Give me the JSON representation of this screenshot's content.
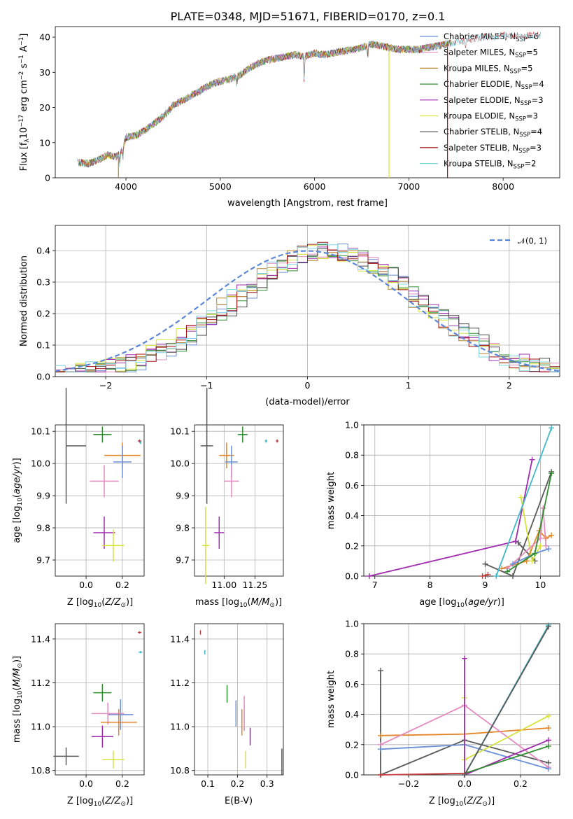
{
  "title": "PLATE=0348, MJD=51671, FIBERID=0170, z=0.1",
  "colors": {
    "series": [
      "#6b8fd6",
      "#e5862b",
      "#2f8f2f",
      "#a12cb0",
      "#5a5a5a",
      "#e48bbf",
      "#c83e3e",
      "#d6e33a",
      "#8a5a2a",
      "#42b8c8"
    ],
    "c_miles": "#6b8fd6",
    "s_miles": "#e48bbf",
    "k_miles": "#b8862b",
    "c_elodie": "#2f8f2f",
    "s_elodie": "#a12cb0",
    "k_elodie": "#d6e33a",
    "c_stelib": "#4a4a4a",
    "s_stelib": "#a01010",
    "k_stelib": "#7fd6e6",
    "normal": "#5b87d6"
  },
  "chart_data": [
    {
      "id": "spectrum",
      "type": "line",
      "xlabel": "wavelength [Angstrom, rest frame]",
      "ylabel": "Flux [fλ10⁻¹⁷ erg cm⁻² s⁻¹ A⁻¹]",
      "xlim": [
        3250,
        8600
      ],
      "ylim": [
        0,
        43
      ],
      "xticks": [
        4000,
        5000,
        6000,
        7000,
        8000
      ],
      "yticks": [
        0,
        10,
        20,
        30,
        40
      ],
      "grid": false,
      "legend_position": "right",
      "legend": [
        "Chabrier MILES, NSSP=6",
        "Salpeter MILES, NSSP=5",
        "Kroupa MILES, NSSP=5",
        "Chabrier ELODIE, NSSP=4",
        "Salpeter ELODIE, NSSP=3",
        "Kroupa ELODIE, NSSP=3",
        "Chabrier STELIB, NSSP=4",
        "Salpeter STELIB, NSSP=3",
        "Kroupa STELIB, NSSP=2"
      ],
      "continuum": [
        [
          3480,
          4.5
        ],
        [
          3600,
          4.0
        ],
        [
          3700,
          5.0
        ],
        [
          3800,
          6.5
        ],
        [
          3900,
          6.0
        ],
        [
          3950,
          7.5
        ],
        [
          4000,
          11.5
        ],
        [
          4100,
          12.0
        ],
        [
          4200,
          13.5
        ],
        [
          4300,
          15.5
        ],
        [
          4400,
          17.5
        ],
        [
          4500,
          20.5
        ],
        [
          4600,
          22.0
        ],
        [
          4700,
          23.5
        ],
        [
          4800,
          25.0
        ],
        [
          4900,
          26.5
        ],
        [
          5000,
          27.5
        ],
        [
          5100,
          28.0
        ],
        [
          5200,
          29.0
        ],
        [
          5300,
          31.0
        ],
        [
          5400,
          32.5
        ],
        [
          5500,
          33.5
        ],
        [
          5600,
          34.0
        ],
        [
          5700,
          34.5
        ],
        [
          5800,
          35.0
        ],
        [
          5900,
          34.5
        ],
        [
          6000,
          35.5
        ],
        [
          6100,
          35.0
        ],
        [
          6200,
          35.5
        ],
        [
          6300,
          36.0
        ],
        [
          6400,
          36.5
        ],
        [
          6500,
          37.0
        ],
        [
          6600,
          38.0
        ],
        [
          6700,
          37.5
        ],
        [
          6800,
          37.0
        ],
        [
          6900,
          36.5
        ],
        [
          7000,
          36.5
        ],
        [
          7100,
          36.5
        ],
        [
          7200,
          37.0
        ],
        [
          7300,
          37.5
        ],
        [
          7400,
          38.0
        ],
        [
          7500,
          38.5
        ],
        [
          7600,
          39.0
        ],
        [
          7700,
          39.5
        ],
        [
          7800,
          40.0
        ],
        [
          7900,
          40.0
        ],
        [
          8000,
          40.5
        ],
        [
          8100,
          40.5
        ],
        [
          8200,
          40.0
        ],
        [
          8300,
          40.5
        ],
        [
          8400,
          40.5
        ]
      ],
      "dips": [
        [
          3933,
          3.0
        ],
        [
          3968,
          3.5
        ],
        [
          5175,
          2.5
        ],
        [
          5890,
          7.0
        ],
        [
          6563,
          3.0
        ],
        [
          7600,
          2.0
        ]
      ],
      "drops": [
        {
          "x": 3920,
          "model": 2
        },
        {
          "x": 6790,
          "model": 5
        },
        {
          "x": 7410,
          "model": 7
        }
      ]
    },
    {
      "id": "residuals",
      "type": "step",
      "xlabel": "(data-model)/error",
      "ylabel": "Normed distribution",
      "xlim": [
        -2.5,
        2.5
      ],
      "ylim": [
        0,
        0.48
      ],
      "xticks": [
        -2,
        -1,
        0,
        1,
        2
      ],
      "yticks": [
        0.0,
        0.1,
        0.2,
        0.3,
        0.4
      ],
      "grid": true,
      "legend_position": "upper right",
      "legend": [
        "𝒩(0, 1)"
      ]
    },
    {
      "id": "age_vs_Z",
      "type": "scatter",
      "xlabel": "Z [log10(Z/Z⊙)]",
      "ylabel": "age  [log10(age/yr)]",
      "xlim": [
        -0.17,
        0.32
      ],
      "ylim": [
        9.65,
        10.12
      ],
      "xticks": [
        0.0,
        0.2
      ],
      "yticks": [
        9.7,
        9.8,
        9.9,
        10.0,
        10.1
      ],
      "grid": true,
      "points": [
        {
          "c": 4,
          "x": -0.11,
          "y": 10.055,
          "xe": 0.11,
          "ye": 0.18,
          "xh": true
        },
        {
          "c": 2,
          "x": 0.09,
          "y": 10.09,
          "xe": 0.05,
          "ye": 0.025
        },
        {
          "c": 1,
          "x": 0.2,
          "y": 10.025,
          "xe": 0.1,
          "ye": 0.04
        },
        {
          "c": 0,
          "x": 0.2,
          "y": 10.005,
          "xe": 0.05,
          "ye": 0.05
        },
        {
          "c": 5,
          "x": 0.1,
          "y": 9.945,
          "xe": 0.08,
          "ye": 0.05
        },
        {
          "c": 3,
          "x": 0.1,
          "y": 9.785,
          "xe": 0.06,
          "ye": 0.05
        },
        {
          "c": 7,
          "x": 0.15,
          "y": 9.745,
          "xe": 0.06,
          "ye": 0.05
        },
        {
          "c": 6,
          "x": 0.295,
          "y": 10.07,
          "xe": 0.01,
          "ye": 0.005
        },
        {
          "c": 9,
          "x": 0.3,
          "y": 10.065,
          "xe": 0.005,
          "ye": 0.004
        }
      ]
    },
    {
      "id": "age_vs_mass",
      "type": "scatter",
      "xlabel": "mass [log10(M/M⊙)]",
      "ylabel": "",
      "xlim": [
        10.76,
        11.48
      ],
      "ylim": [
        9.65,
        10.12
      ],
      "xticks": [
        11.0,
        11.25
      ],
      "yticks": [
        9.7,
        9.8,
        9.9,
        10.0,
        10.1
      ],
      "grid": true,
      "points": [
        {
          "c": 4,
          "x": 10.86,
          "y": 10.055,
          "xe": 0.05,
          "ye": 0.18
        },
        {
          "c": 2,
          "x": 11.15,
          "y": 10.09,
          "xe": 0.04,
          "ye": 0.025
        },
        {
          "c": 1,
          "x": 11.02,
          "y": 10.025,
          "xe": 0.06,
          "ye": 0.04
        },
        {
          "c": 0,
          "x": 11.06,
          "y": 10.005,
          "xe": 0.05,
          "ye": 0.05
        },
        {
          "c": 5,
          "x": 11.06,
          "y": 9.945,
          "xe": 0.06,
          "ye": 0.05
        },
        {
          "c": 3,
          "x": 10.96,
          "y": 9.785,
          "xe": 0.04,
          "ye": 0.05
        },
        {
          "c": 7,
          "x": 10.85,
          "y": 9.745,
          "xe": 0.03,
          "ye": 0.12
        },
        {
          "c": 6,
          "x": 11.43,
          "y": 10.07,
          "xe": 0.01,
          "ye": 0.005
        },
        {
          "c": 9,
          "x": 11.34,
          "y": 10.07,
          "xe": 0.01,
          "ye": 0.005
        }
      ]
    },
    {
      "id": "massweight_vs_age",
      "type": "line",
      "xlabel": "age  [log10(age/yr)]",
      "ylabel": "mass weight",
      "xlim": [
        6.8,
        10.35
      ],
      "ylim": [
        0,
        1
      ],
      "xticks": [
        7,
        8,
        9,
        10
      ],
      "yticks": [
        0.0,
        0.2,
        0.4,
        0.6,
        0.8,
        1.0
      ],
      "grid": true,
      "series": [
        {
          "c": 3,
          "pts": [
            [
              6.9,
              0.0
            ],
            [
              9.55,
              0.23
            ],
            [
              9.85,
              0.77
            ]
          ]
        },
        {
          "c": 4,
          "pts": [
            [
              9.0,
              0.08
            ],
            [
              9.5,
              0.0
            ],
            [
              10.2,
              0.69
            ]
          ]
        },
        {
          "c": 4,
          "pts": [
            [
              9.6,
              0.22
            ],
            [
              9.9,
              0.1
            ]
          ]
        },
        {
          "c": 7,
          "pts": [
            [
              9.65,
              0.52
            ],
            [
              9.85,
              0.1
            ],
            [
              10.0,
              0.2
            ]
          ]
        },
        {
          "c": 1,
          "pts": [
            [
              9.3,
              0.05
            ],
            [
              9.75,
              0.1
            ],
            [
              9.98,
              0.3
            ],
            [
              10.1,
              0.25
            ],
            [
              10.2,
              0.27
            ]
          ]
        },
        {
          "c": 5,
          "pts": [
            [
              9.4,
              0.05
            ],
            [
              10.0,
              0.25
            ],
            [
              10.05,
              0.45
            ],
            [
              10.1,
              0.2
            ]
          ]
        },
        {
          "c": 0,
          "pts": [
            [
              9.5,
              0.08
            ],
            [
              9.9,
              0.15
            ],
            [
              10.15,
              0.18
            ]
          ]
        },
        {
          "c": 2,
          "pts": [
            [
              9.4,
              0.03
            ],
            [
              9.9,
              0.15
            ],
            [
              10.2,
              0.68
            ]
          ]
        },
        {
          "c": 6,
          "pts": [
            [
              8.95,
              0.0
            ],
            [
              9.05,
              0.01
            ]
          ]
        },
        {
          "c": 9,
          "pts": [
            [
              9.2,
              0.0
            ],
            [
              10.2,
              0.98
            ]
          ]
        }
      ]
    },
    {
      "id": "mass_vs_Z",
      "type": "scatter",
      "xlabel": "Z [log10(Z/Z⊙)]",
      "ylabel": "mass [log10(M/M⊙)]",
      "xlim": [
        -0.17,
        0.32
      ],
      "ylim": [
        10.78,
        11.47
      ],
      "xticks": [
        0.0,
        0.2
      ],
      "yticks": [
        10.8,
        11.0,
        11.2,
        11.4
      ],
      "grid": true,
      "points": [
        {
          "c": 4,
          "x": -0.11,
          "y": 10.865,
          "xe": 0.07,
          "ye": 0.04
        },
        {
          "c": 2,
          "x": 0.09,
          "y": 11.155,
          "xe": 0.05,
          "ye": 0.04
        },
        {
          "c": 0,
          "x": 0.19,
          "y": 11.055,
          "xe": 0.07,
          "ye": 0.07
        },
        {
          "c": 5,
          "x": 0.12,
          "y": 11.06,
          "xe": 0.09,
          "ye": 0.05
        },
        {
          "c": 1,
          "x": 0.18,
          "y": 11.02,
          "xe": 0.1,
          "ye": 0.06
        },
        {
          "c": 3,
          "x": 0.09,
          "y": 10.955,
          "xe": 0.06,
          "ye": 0.05
        },
        {
          "c": 7,
          "x": 0.15,
          "y": 10.85,
          "xe": 0.06,
          "ye": 0.04
        },
        {
          "c": 6,
          "x": 0.295,
          "y": 11.43,
          "xe": 0.01,
          "ye": 0.005
        },
        {
          "c": 9,
          "x": 0.3,
          "y": 11.34,
          "xe": 0.01,
          "ye": 0.005
        }
      ]
    },
    {
      "id": "mass_vs_ebv",
      "type": "scatter",
      "xlabel": "E(B-V)",
      "ylabel": "",
      "xlim": [
        0.055,
        0.355
      ],
      "ylim": [
        10.78,
        11.47
      ],
      "xticks": [
        0.1,
        0.2,
        0.3
      ],
      "yticks": [
        10.8,
        11.0,
        11.2,
        11.4
      ],
      "grid": true,
      "points": [
        {
          "c": 4,
          "x": 0.35,
          "y": 10.84,
          "xe": 0.001,
          "ye": 0.06
        },
        {
          "c": 2,
          "x": 0.165,
          "y": 11.15,
          "xe": 0.001,
          "ye": 0.04
        },
        {
          "c": 0,
          "x": 0.195,
          "y": 11.06,
          "xe": 0.001,
          "ye": 0.06
        },
        {
          "c": 5,
          "x": 0.223,
          "y": 11.06,
          "xe": 0.001,
          "ye": 0.08
        },
        {
          "c": 1,
          "x": 0.215,
          "y": 11.02,
          "xe": 0.001,
          "ye": 0.06
        },
        {
          "c": 3,
          "x": 0.243,
          "y": 10.955,
          "xe": 0.001,
          "ye": 0.04
        },
        {
          "c": 7,
          "x": 0.228,
          "y": 10.85,
          "xe": 0.001,
          "ye": 0.04
        },
        {
          "c": 6,
          "x": 0.075,
          "y": 11.43,
          "xe": 0.001,
          "ye": 0.01
        },
        {
          "c": 9,
          "x": 0.09,
          "y": 11.34,
          "xe": 0.001,
          "ye": 0.01
        }
      ]
    },
    {
      "id": "massweight_vs_Z",
      "type": "line",
      "xlabel": "Z [log10(Z/Z⊙)]",
      "ylabel": "mass weight",
      "xlim": [
        -0.36,
        0.34
      ],
      "ylim": [
        0,
        1
      ],
      "xticks": [
        -0.2,
        0.0,
        0.2
      ],
      "yticks": [
        0.0,
        0.2,
        0.4,
        0.6,
        0.8,
        1.0
      ],
      "grid": true,
      "series": [
        {
          "c": 4,
          "pts": [
            [
              -0.3,
              0.0
            ],
            [
              0.0,
              0.23
            ],
            [
              0.3,
              0.08
            ]
          ]
        },
        {
          "c": 4,
          "pts": [
            [
              -0.3,
              0.69
            ],
            [
              -0.3,
              0.0
            ]
          ]
        },
        {
          "c": 1,
          "pts": [
            [
              -0.3,
              0.26
            ],
            [
              0.0,
              0.27
            ],
            [
              0.3,
              0.31
            ]
          ]
        },
        {
          "c": 5,
          "pts": [
            [
              -0.3,
              0.2
            ],
            [
              0.0,
              0.46
            ],
            [
              0.3,
              0.05
            ]
          ]
        },
        {
          "c": 0,
          "pts": [
            [
              -0.3,
              0.17
            ],
            [
              0.0,
              0.2
            ],
            [
              0.3,
              0.04
            ]
          ]
        },
        {
          "c": 7,
          "pts": [
            [
              0.0,
              0.51
            ],
            [
              0.0,
              0.1
            ],
            [
              0.3,
              0.39
            ]
          ]
        },
        {
          "c": 3,
          "pts": [
            [
              0.0,
              0.77
            ],
            [
              0.0,
              0.0
            ],
            [
              0.3,
              0.23
            ]
          ]
        },
        {
          "c": 2,
          "pts": [
            [
              0.0,
              0.01
            ],
            [
              0.3,
              0.19
            ]
          ]
        },
        {
          "c": 6,
          "pts": [
            [
              -0.3,
              0.0
            ],
            [
              0.0,
              0.01
            ]
          ]
        },
        {
          "c": 9,
          "pts": [
            [
              0.0,
              0.0
            ],
            [
              0.3,
              0.99
            ]
          ]
        },
        {
          "c": 4,
          "pts": [
            [
              0.0,
              0.0
            ],
            [
              0.3,
              0.98
            ]
          ]
        }
      ]
    }
  ]
}
